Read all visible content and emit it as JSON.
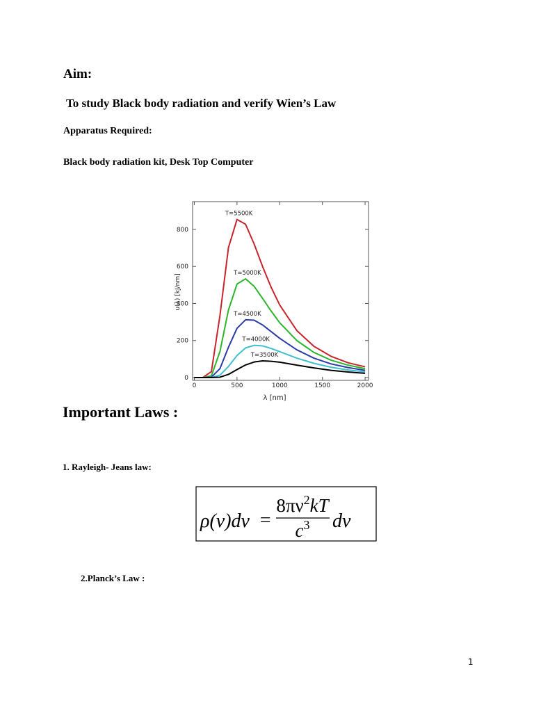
{
  "header": {
    "title": "Aim:",
    "aim": "To study Black body radiation and verify Wien’s Law"
  },
  "apparatus": {
    "heading": "Apparatus Required:",
    "items": "Black body radiation kit, Desk Top Computer"
  },
  "laws": {
    "heading": "Important Laws :",
    "law1": {
      "title": "1. Rayleigh- Jeans  law:",
      "formula": {
        "lhs": "ρ(ν)dν",
        "equals": "=",
        "numerator_base": "8πν",
        "numerator_exp": "2",
        "numerator_rest": "kT",
        "denominator_base": "c",
        "denominator_exp": "3",
        "rhs": "dν"
      }
    },
    "law2": {
      "title": "2.Planck’s Law :"
    }
  },
  "footer": {
    "page_number": "1"
  },
  "chart_data": {
    "type": "line",
    "x_label": "λ [nm]",
    "y_label": "u(λ) [kJ/nm]",
    "x": [
      0,
      100,
      200,
      300,
      400,
      500,
      600,
      700,
      800,
      900,
      1000,
      1200,
      1400,
      1600,
      1800,
      2000
    ],
    "series": [
      {
        "name": "T=5500K",
        "color": "#c8242b",
        "values": [
          0,
          0,
          32,
          334,
          702,
          854,
          828,
          722,
          599,
          487,
          392,
          254,
          169,
          115,
          80,
          58
        ]
      },
      {
        "name": "T=5000K",
        "color": "#2bb52b",
        "values": [
          0,
          0,
          9,
          140,
          365,
          505,
          533,
          493,
          427,
          359,
          296,
          200,
          136,
          94,
          67,
          48
        ]
      },
      {
        "name": "T=4500K",
        "color": "#2b3aa8",
        "values": [
          0,
          0,
          2,
          48,
          164,
          266,
          312,
          310,
          284,
          248,
          212,
          150,
          105,
          74,
          54,
          39
        ]
      },
      {
        "name": "T=4000K",
        "color": "#3fbfcf",
        "values": [
          0,
          0,
          0,
          13,
          60,
          119,
          160,
          174,
          171,
          157,
          140,
          105,
          77,
          56,
          41,
          31
        ]
      },
      {
        "name": "T=3500K",
        "color": "#000000",
        "values": [
          0,
          0,
          0,
          2,
          17,
          43,
          68,
          84,
          90,
          88,
          83,
          67,
          52,
          39,
          30,
          23
        ]
      }
    ],
    "xlim": [
      -20,
      2040
    ],
    "ylim": [
      -15,
      950
    ],
    "xticks": [
      0,
      500,
      1000,
      1500,
      2000
    ],
    "yticks": [
      0,
      200,
      400,
      600,
      800
    ],
    "grid": false
  }
}
